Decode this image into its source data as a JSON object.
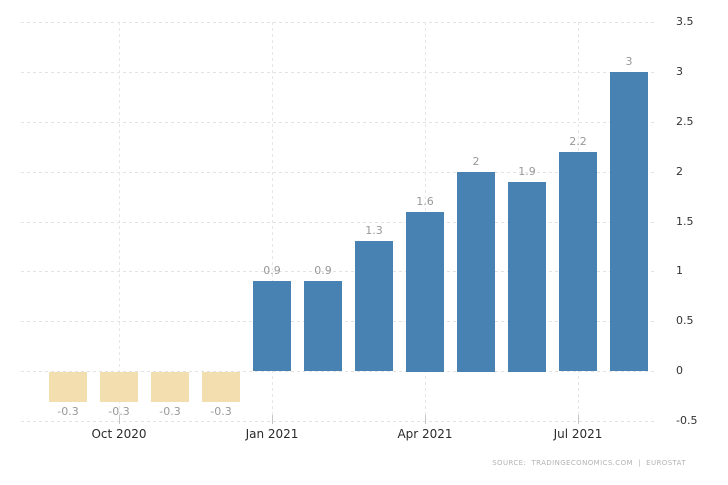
{
  "chart_data": {
    "type": "bar",
    "title": "",
    "values": [
      -0.3,
      -0.3,
      -0.3,
      -0.3,
      0.9,
      0.9,
      1.3,
      1.6,
      2,
      1.9,
      2.2,
      3
    ],
    "bar_labels": [
      "-0.3",
      "-0.3",
      "-0.3",
      "-0.3",
      "0.9",
      "0.9",
      "1.3",
      "1.6",
      "2",
      "1.9",
      "2.2",
      "3"
    ],
    "x_ticks": [
      {
        "bar_index": 1,
        "label": "Oct 2020"
      },
      {
        "bar_index": 4,
        "label": "Jan 2021"
      },
      {
        "bar_index": 7,
        "label": "Apr 2021"
      },
      {
        "bar_index": 10,
        "label": "Jul 2021"
      }
    ],
    "y_tick_labels": [
      "3.5",
      "3",
      "2.5",
      "2",
      "1.5",
      "1",
      "0.5",
      "0",
      "-0.5"
    ],
    "y_tick_values": [
      3.5,
      3,
      2.5,
      2,
      1.5,
      1,
      0.5,
      0,
      -0.5
    ],
    "ylim": [
      -0.5,
      3.5
    ],
    "grid": "dashed",
    "legend": "none",
    "colors": {
      "positive_bar": "#4882b3",
      "negative_bar": "#f3deb0",
      "value_label": "#999999",
      "axis_label": "#2b2b2b",
      "y_axis_label": "#333333",
      "gridline": "#e3e3e3"
    }
  },
  "source": {
    "text": "SOURCE:  TRADINGECONOMICS.COM  |  EUROSTAT"
  }
}
